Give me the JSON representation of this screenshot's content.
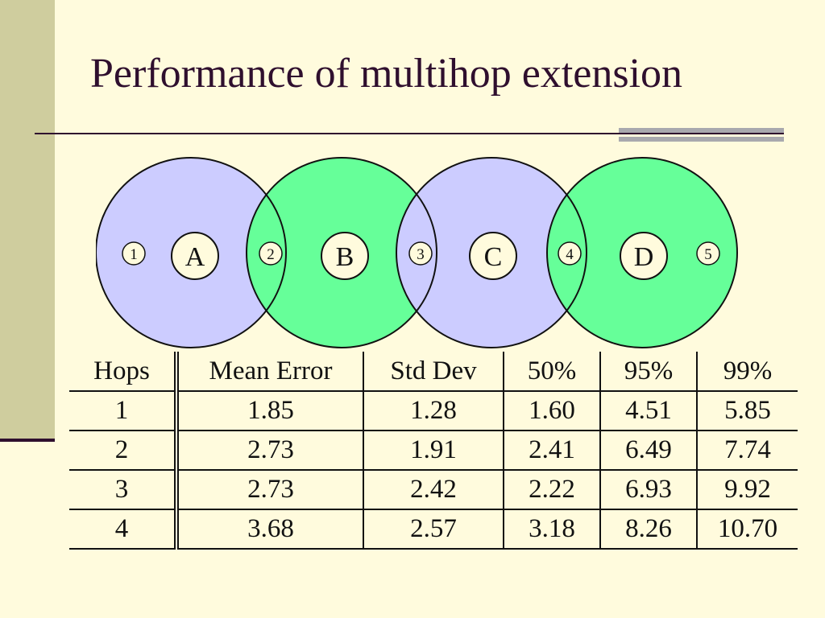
{
  "slide": {
    "title": "Performance of multihop extension"
  },
  "diagram": {
    "colors": {
      "blue": "#CCCCFF",
      "green": "#66FF99",
      "node_fill": "#FFFBDD"
    },
    "circles": [
      "A",
      "B",
      "C",
      "D"
    ],
    "intersection_nodes": [
      "1",
      "2",
      "3",
      "4",
      "5"
    ]
  },
  "table": {
    "headers": [
      "Hops",
      "Mean Error",
      "Std Dev",
      "50%",
      "95%",
      "99%"
    ],
    "rows": [
      [
        "1",
        "1.85",
        "1.28",
        "1.60",
        "4.51",
        "5.85"
      ],
      [
        "2",
        "2.73",
        "1.91",
        "2.41",
        "6.49",
        "7.74"
      ],
      [
        "3",
        "2.73",
        "2.42",
        "2.22",
        "6.93",
        "9.92"
      ],
      [
        "4",
        "3.68",
        "2.57",
        "3.18",
        "8.26",
        "10.70"
      ]
    ]
  }
}
